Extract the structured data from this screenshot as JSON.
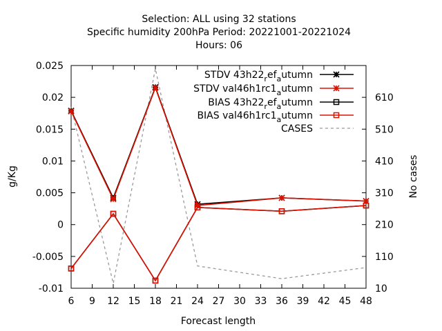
{
  "chart_data": {
    "type": "line",
    "title_lines": [
      "Selection: ALL using    32 stations",
      "Specific humidity 200hPa   Period: 20221001-20221024",
      "Hours:  06"
    ],
    "xlabel": "Forecast length",
    "ylabel": "g/Kg",
    "y2label": "No cases",
    "xlim": [
      6,
      48
    ],
    "ylim": [
      -0.01,
      0.025
    ],
    "y2lim": [
      10,
      710
    ],
    "xticks": [
      6,
      9,
      12,
      15,
      18,
      21,
      24,
      27,
      30,
      33,
      36,
      39,
      42,
      45,
      48
    ],
    "yticks": [
      {
        "value": -0.01,
        "label": "-0.01"
      },
      {
        "value": -0.005,
        "label": "-0.005"
      },
      {
        "value": 0,
        "label": "0"
      },
      {
        "value": 0.005,
        "label": "0.005"
      },
      {
        "value": 0.01,
        "label": "0.01"
      },
      {
        "value": 0.015,
        "label": "0.015"
      },
      {
        "value": 0.02,
        "label": "0.02"
      },
      {
        "value": 0.025,
        "label": "0.025"
      }
    ],
    "y2ticks": [
      {
        "value": 10,
        "label": "10"
      },
      {
        "value": 110,
        "label": "110"
      },
      {
        "value": 210,
        "label": "210"
      },
      {
        "value": 310,
        "label": "310"
      },
      {
        "value": 410,
        "label": "410"
      },
      {
        "value": 510,
        "label": "510"
      },
      {
        "value": 610,
        "label": "610"
      }
    ],
    "grid": false,
    "legend_position": "top-right",
    "series": [
      {
        "name": "STDV 43h22_ref_autumn",
        "legend_base": "STDV 43h22",
        "legend_sub": "r",
        "legend_mid": "ef",
        "legend_sub2": "a",
        "legend_tail": "utumn",
        "color": "#000000",
        "marker": "star",
        "dash": "",
        "axis": "y1",
        "x": [
          6,
          12,
          18,
          24,
          36,
          48
        ],
        "y": [
          0.0179,
          0.0042,
          0.0216,
          0.0032,
          0.0042,
          0.0037
        ]
      },
      {
        "name": "STDV val46h1rc1_autumn",
        "legend_base": "STDV val46h1rc1",
        "legend_sub": "a",
        "legend_mid": "",
        "legend_sub2": "",
        "legend_tail": "utumn",
        "color": "#dd1100",
        "marker": "star",
        "dash": "",
        "axis": "y1",
        "x": [
          6,
          12,
          18,
          24,
          36,
          48
        ],
        "y": [
          0.0178,
          0.004,
          0.0215,
          0.003,
          0.0042,
          0.0037
        ]
      },
      {
        "name": "BIAS 43h22_ref_autumn",
        "legend_base": "BIAS 43h22",
        "legend_sub": "r",
        "legend_mid": "ef",
        "legend_sub2": "a",
        "legend_tail": "utumn",
        "color": "#000000",
        "marker": "square",
        "dash": "",
        "axis": "y1",
        "x": [
          6,
          12,
          18,
          24,
          36,
          48
        ],
        "y": [
          -0.0069,
          0.0017,
          -0.0088,
          0.0027,
          0.0021,
          0.003
        ]
      },
      {
        "name": "BIAS val46h1rc1_autumn",
        "legend_base": "BIAS val46h1rc1",
        "legend_sub": "a",
        "legend_mid": "",
        "legend_sub2": "",
        "legend_tail": "utumn",
        "color": "#dd1100",
        "marker": "square",
        "dash": "",
        "axis": "y1",
        "x": [
          6,
          12,
          18,
          24,
          36,
          48
        ],
        "y": [
          -0.0069,
          0.0017,
          -0.0088,
          0.0027,
          0.0021,
          0.003
        ]
      },
      {
        "name": "CASES",
        "legend_base": "CASES",
        "legend_sub": "",
        "legend_mid": "",
        "legend_sub2": "",
        "legend_tail": "",
        "color": "#999999",
        "marker": "none",
        "dash": "4,4",
        "axis": "y2",
        "x": [
          6,
          12,
          18,
          24,
          36,
          48
        ],
        "y": [
          580,
          25,
          700,
          80,
          40,
          75
        ]
      }
    ]
  }
}
